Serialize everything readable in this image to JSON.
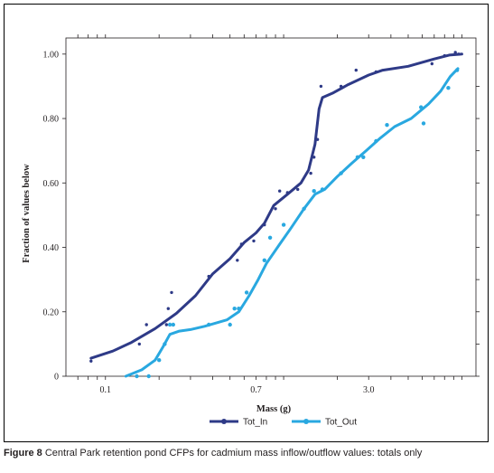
{
  "caption": {
    "label": "Figure 8",
    "text": "Central Park retention pond CFPs for cadmium mass inflow/outflow values: totals only"
  },
  "chart_data": {
    "type": "line",
    "xlabel": "Mass (g)",
    "ylabel": "Fraction of values below",
    "x_scale": "log",
    "xlim": [
      0.06,
      12
    ],
    "ylim": [
      0,
      1.05
    ],
    "x_ticks": [
      {
        "value": 0.1,
        "label": "0.1"
      },
      {
        "value": 0.7,
        "label": "0.7"
      },
      {
        "value": 3.0,
        "label": "3.0"
      }
    ],
    "y_ticks": [
      {
        "value": 0,
        "label": "0"
      },
      {
        "value": 0.2,
        "label": "0.20"
      },
      {
        "value": 0.4,
        "label": "0.40"
      },
      {
        "value": 0.6,
        "label": "0.60"
      },
      {
        "value": 0.8,
        "label": "0.80"
      },
      {
        "value": 1.0,
        "label": "1.00"
      }
    ],
    "legend_position": "bottom",
    "series": [
      {
        "name": "Tot_In",
        "color": "#2e3a87",
        "line": [
          [
            0.083,
            0.056
          ],
          [
            0.11,
            0.078
          ],
          [
            0.14,
            0.105
          ],
          [
            0.19,
            0.148
          ],
          [
            0.25,
            0.195
          ],
          [
            0.32,
            0.25
          ],
          [
            0.4,
            0.318
          ],
          [
            0.5,
            0.365
          ],
          [
            0.6,
            0.415
          ],
          [
            0.7,
            0.445
          ],
          [
            0.78,
            0.475
          ],
          [
            0.88,
            0.53
          ],
          [
            1.05,
            0.565
          ],
          [
            1.25,
            0.6
          ],
          [
            1.38,
            0.64
          ],
          [
            1.5,
            0.72
          ],
          [
            1.58,
            0.83
          ],
          [
            1.65,
            0.865
          ],
          [
            1.9,
            0.88
          ],
          [
            2.3,
            0.905
          ],
          [
            3.0,
            0.935
          ],
          [
            3.6,
            0.95
          ],
          [
            5.0,
            0.962
          ],
          [
            7.0,
            0.985
          ],
          [
            8.5,
            0.997
          ],
          [
            10.0,
            1.0
          ]
        ],
        "points": [
          [
            0.083,
            0.047
          ],
          [
            0.155,
            0.1
          ],
          [
            0.17,
            0.16
          ],
          [
            0.22,
            0.16
          ],
          [
            0.225,
            0.21
          ],
          [
            0.235,
            0.26
          ],
          [
            0.38,
            0.31
          ],
          [
            0.55,
            0.36
          ],
          [
            0.58,
            0.41
          ],
          [
            0.68,
            0.42
          ],
          [
            0.78,
            0.47
          ],
          [
            0.9,
            0.52
          ],
          [
            0.95,
            0.575
          ],
          [
            1.05,
            0.57
          ],
          [
            1.2,
            0.58
          ],
          [
            1.42,
            0.63
          ],
          [
            1.48,
            0.68
          ],
          [
            1.55,
            0.735
          ],
          [
            1.62,
            0.9
          ],
          [
            2.1,
            0.9
          ],
          [
            2.55,
            0.95
          ],
          [
            3.3,
            0.945
          ],
          [
            6.8,
            0.97
          ],
          [
            8.0,
            0.995
          ],
          [
            9.2,
            1.005
          ],
          [
            9.6,
            1.0
          ]
        ]
      },
      {
        "name": "Tot_Out",
        "color": "#29a8e0",
        "line": [
          [
            0.13,
            0.0
          ],
          [
            0.16,
            0.02
          ],
          [
            0.19,
            0.05
          ],
          [
            0.21,
            0.09
          ],
          [
            0.23,
            0.13
          ],
          [
            0.26,
            0.14
          ],
          [
            0.3,
            0.145
          ],
          [
            0.36,
            0.155
          ],
          [
            0.48,
            0.175
          ],
          [
            0.56,
            0.2
          ],
          [
            0.64,
            0.25
          ],
          [
            0.72,
            0.3
          ],
          [
            0.8,
            0.35
          ],
          [
            0.95,
            0.41
          ],
          [
            1.1,
            0.46
          ],
          [
            1.3,
            0.52
          ],
          [
            1.5,
            0.565
          ],
          [
            1.7,
            0.58
          ],
          [
            2.0,
            0.62
          ],
          [
            2.4,
            0.66
          ],
          [
            2.9,
            0.7
          ],
          [
            3.5,
            0.74
          ],
          [
            4.2,
            0.775
          ],
          [
            5.2,
            0.8
          ],
          [
            6.5,
            0.845
          ],
          [
            7.6,
            0.885
          ],
          [
            8.6,
            0.93
          ],
          [
            9.5,
            0.955
          ]
        ],
        "points": [
          [
            0.15,
            0.0
          ],
          [
            0.175,
            0.0
          ],
          [
            0.2,
            0.05
          ],
          [
            0.215,
            0.1
          ],
          [
            0.23,
            0.16
          ],
          [
            0.24,
            0.16
          ],
          [
            0.38,
            0.16
          ],
          [
            0.5,
            0.16
          ],
          [
            0.53,
            0.21
          ],
          [
            0.56,
            0.21
          ],
          [
            0.62,
            0.26
          ],
          [
            0.78,
            0.36
          ],
          [
            0.84,
            0.43
          ],
          [
            1.0,
            0.47
          ],
          [
            1.3,
            0.52
          ],
          [
            1.48,
            0.575
          ],
          [
            1.65,
            0.58
          ],
          [
            2.1,
            0.63
          ],
          [
            2.6,
            0.68
          ],
          [
            2.8,
            0.68
          ],
          [
            3.3,
            0.73
          ],
          [
            3.8,
            0.78
          ],
          [
            6.1,
            0.785
          ],
          [
            5.9,
            0.835
          ],
          [
            8.4,
            0.895
          ],
          [
            9.4,
            0.95
          ]
        ]
      }
    ]
  }
}
